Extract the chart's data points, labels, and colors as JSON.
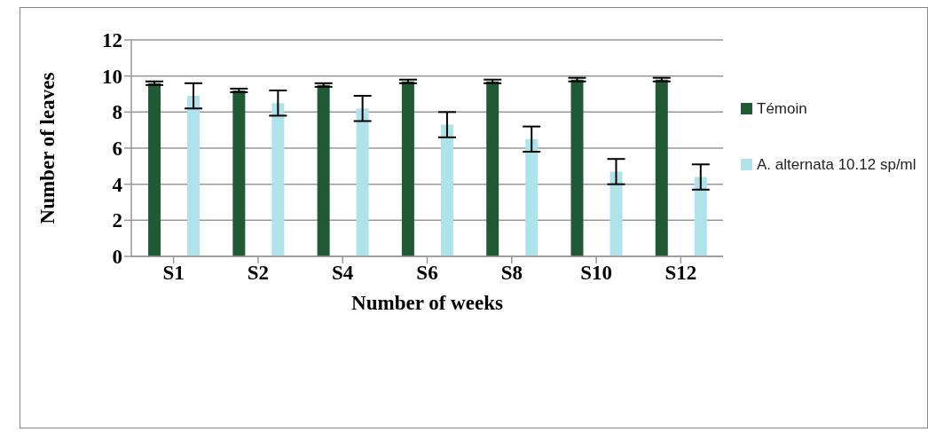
{
  "chart_data": {
    "type": "bar",
    "xlabel": "Number of weeks",
    "ylabel": "Number of leaves",
    "categories": [
      "S1",
      "S2",
      "S4",
      "S6",
      "S8",
      "S10",
      "S12"
    ],
    "series": [
      {
        "name": "Témoin",
        "color": "#1f5a34",
        "values": [
          9.6,
          9.2,
          9.5,
          9.7,
          9.7,
          9.8,
          9.8
        ],
        "errors": [
          0.1,
          0.1,
          0.1,
          0.1,
          0.1,
          0.1,
          0.1
        ]
      },
      {
        "name": "A. alternata 10.12 sp/ml",
        "color": "#aee3ec",
        "values": [
          8.9,
          8.5,
          8.2,
          7.3,
          6.5,
          4.7,
          4.4
        ],
        "errors": [
          0.7,
          0.7,
          0.7,
          0.7,
          0.7,
          0.7,
          0.7
        ]
      }
    ],
    "ylim": [
      0,
      12
    ],
    "yticks": [
      0,
      2,
      4,
      6,
      8,
      10,
      12
    ],
    "grid": "y",
    "legend": "right"
  }
}
